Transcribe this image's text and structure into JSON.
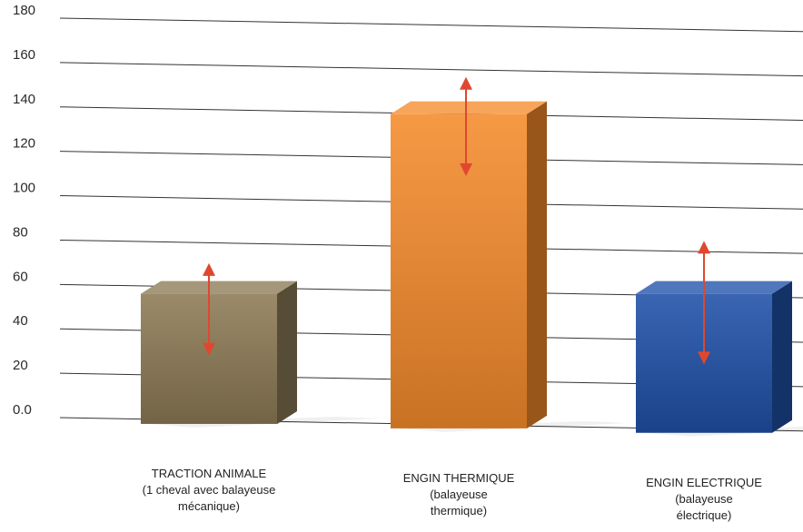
{
  "chart_data": {
    "type": "bar",
    "style": "3d",
    "title": "",
    "xlabel": "",
    "ylabel": "",
    "ylim": [
      0,
      180
    ],
    "yticks": [
      "0.0",
      "20",
      "40",
      "60",
      "80",
      "100",
      "120",
      "140",
      "160",
      "180"
    ],
    "grid": true,
    "categories": [
      {
        "lines": [
          "TRACTION ANIMALE",
          "(1 cheval avec balayeuse",
          "mécanique)"
        ]
      },
      {
        "lines": [
          "ENGIN THERMIQUE",
          "(balayeuse",
          "thermique)"
        ]
      },
      {
        "lines": [
          "ENGIN ELECTRIQUE",
          "(balayeuse",
          "électrique)"
        ]
      }
    ],
    "values": [
      57,
      140,
      61
    ],
    "ranges": [
      [
        30,
        70
      ],
      [
        113,
        156
      ],
      [
        30,
        84
      ]
    ],
    "colors": {
      "bars": [
        "#8c7a55",
        "#f58b2c",
        "#1f50a8"
      ],
      "arrow": "#e0472f",
      "grid": "#333333"
    }
  }
}
